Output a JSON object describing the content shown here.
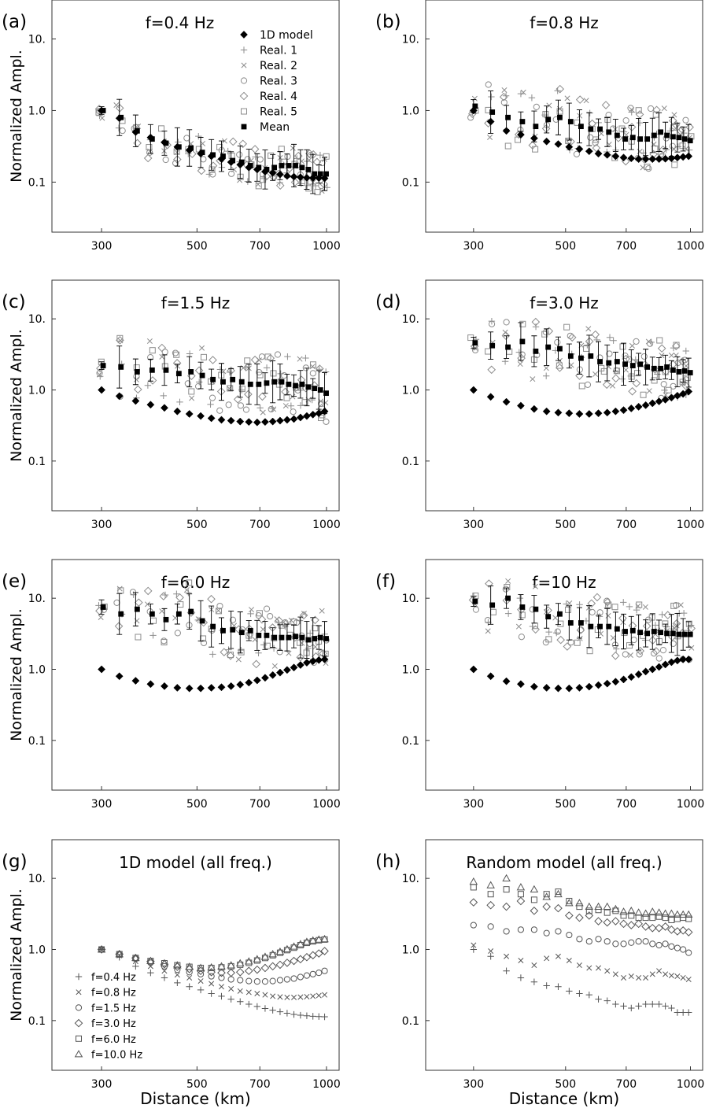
{
  "figure": {
    "ylabel": "Normalized Ampl.",
    "xlabel": "Distance (km)",
    "x_tick_labels": [
      "300",
      "500",
      "700",
      "1000"
    ],
    "y_tick_labels": [
      "10.",
      "1.0",
      "0.1"
    ]
  },
  "legend_main": [
    {
      "marker": "diamond_filled",
      "label": "1D model"
    },
    {
      "marker": "plus",
      "label": "Real. 1"
    },
    {
      "marker": "cross",
      "label": "Real. 2"
    },
    {
      "marker": "circle",
      "label": "Real. 3"
    },
    {
      "marker": "diamond_open",
      "label": "Real. 4"
    },
    {
      "marker": "square_open",
      "label": "Real. 5"
    },
    {
      "marker": "square_filled",
      "label": "Mean"
    }
  ],
  "legend_freq": [
    {
      "marker": "plus",
      "label": "f=0.4 Hz"
    },
    {
      "marker": "cross",
      "label": "f=0.8 Hz"
    },
    {
      "marker": "circle",
      "label": "f=1.5 Hz"
    },
    {
      "marker": "diamond_open",
      "label": "f=3.0 Hz"
    },
    {
      "marker": "square_open",
      "label": "f=6.0 Hz"
    },
    {
      "marker": "triangle",
      "label": "f=10.0 Hz"
    }
  ],
  "colors": {
    "black": "#000000",
    "gray": "#8c8c8c",
    "frame": "#333333"
  },
  "chart_data": [
    {
      "panel": "(a)",
      "title": "f=0.4 Hz",
      "type": "scatter",
      "xscale": "log",
      "yscale": "log",
      "xlim": [
        230,
        1070
      ],
      "ylim": [
        0.02,
        35
      ],
      "distances": [
        300,
        330,
        360,
        390,
        420,
        450,
        480,
        510,
        540,
        570,
        600,
        630,
        660,
        690,
        720,
        750,
        780,
        810,
        840,
        870,
        900,
        930,
        960,
        990
      ],
      "model_1d": [
        1.0,
        0.78,
        0.5,
        0.42,
        0.36,
        0.31,
        0.28,
        0.25,
        0.23,
        0.21,
        0.19,
        0.175,
        0.16,
        0.15,
        0.14,
        0.135,
        0.128,
        0.122,
        0.119,
        0.117,
        0.115,
        0.114,
        0.114,
        0.113
      ],
      "mean": [
        1.0,
        0.8,
        0.52,
        0.4,
        0.35,
        0.31,
        0.3,
        0.26,
        0.24,
        0.23,
        0.2,
        0.19,
        0.17,
        0.16,
        0.15,
        0.16,
        0.17,
        0.17,
        0.17,
        0.16,
        0.15,
        0.13,
        0.13,
        0.13
      ],
      "legend": "main"
    },
    {
      "panel": "(b)",
      "title": "f=0.8 Hz",
      "type": "scatter",
      "xscale": "log",
      "yscale": "log",
      "xlim": [
        230,
        1070
      ],
      "ylim": [
        0.02,
        35
      ],
      "distances": [
        300,
        330,
        360,
        390,
        420,
        450,
        480,
        510,
        540,
        570,
        600,
        630,
        660,
        690,
        720,
        750,
        780,
        810,
        840,
        870,
        900,
        930,
        960,
        990
      ],
      "model_1d": [
        1.0,
        0.7,
        0.52,
        0.46,
        0.41,
        0.37,
        0.34,
        0.31,
        0.29,
        0.27,
        0.25,
        0.24,
        0.23,
        0.22,
        0.215,
        0.21,
        0.21,
        0.21,
        0.21,
        0.212,
        0.215,
        0.22,
        0.225,
        0.23
      ],
      "mean": [
        1.15,
        0.95,
        0.8,
        0.7,
        0.6,
        0.75,
        0.8,
        0.7,
        0.6,
        0.55,
        0.55,
        0.5,
        0.45,
        0.4,
        0.42,
        0.4,
        0.4,
        0.45,
        0.5,
        0.45,
        0.43,
        0.42,
        0.4,
        0.38
      ]
    },
    {
      "panel": "(c)",
      "title": "f=1.5 Hz",
      "type": "scatter",
      "xscale": "log",
      "yscale": "log",
      "xlim": [
        230,
        1070
      ],
      "ylim": [
        0.02,
        35
      ],
      "distances": [
        300,
        330,
        360,
        390,
        420,
        450,
        480,
        510,
        540,
        570,
        600,
        630,
        660,
        690,
        720,
        750,
        780,
        810,
        840,
        870,
        900,
        930,
        960,
        990
      ],
      "model_1d": [
        1.0,
        0.82,
        0.7,
        0.62,
        0.56,
        0.5,
        0.46,
        0.43,
        0.4,
        0.38,
        0.37,
        0.36,
        0.355,
        0.35,
        0.355,
        0.36,
        0.37,
        0.38,
        0.39,
        0.41,
        0.43,
        0.45,
        0.47,
        0.5
      ],
      "mean": [
        2.2,
        2.1,
        1.8,
        1.9,
        1.9,
        1.7,
        1.8,
        1.6,
        1.4,
        1.3,
        1.4,
        1.3,
        1.2,
        1.2,
        1.25,
        1.3,
        1.3,
        1.2,
        1.15,
        1.2,
        1.1,
        1.05,
        1.0,
        0.9
      ]
    },
    {
      "panel": "(d)",
      "title": "f=3.0 Hz",
      "type": "scatter",
      "xscale": "log",
      "yscale": "log",
      "xlim": [
        230,
        1070
      ],
      "ylim": [
        0.02,
        35
      ],
      "distances": [
        300,
        330,
        360,
        390,
        420,
        450,
        480,
        510,
        540,
        570,
        600,
        630,
        660,
        690,
        720,
        750,
        780,
        810,
        840,
        870,
        900,
        930,
        960,
        990
      ],
      "model_1d": [
        1.0,
        0.8,
        0.68,
        0.6,
        0.54,
        0.5,
        0.48,
        0.47,
        0.46,
        0.46,
        0.47,
        0.48,
        0.5,
        0.52,
        0.55,
        0.58,
        0.61,
        0.65,
        0.69,
        0.73,
        0.78,
        0.83,
        0.88,
        0.95
      ],
      "mean": [
        4.6,
        4.2,
        4.0,
        4.8,
        3.5,
        4.0,
        3.8,
        3.0,
        2.8,
        3.0,
        2.5,
        2.4,
        2.5,
        2.3,
        2.2,
        2.3,
        2.1,
        2.0,
        2.0,
        2.1,
        1.9,
        1.8,
        1.85,
        1.75
      ]
    },
    {
      "panel": "(e)",
      "title": "f=6.0 Hz",
      "type": "scatter",
      "xscale": "log",
      "yscale": "log",
      "xlim": [
        230,
        1070
      ],
      "ylim": [
        0.02,
        35
      ],
      "distances": [
        300,
        330,
        360,
        390,
        420,
        450,
        480,
        510,
        540,
        570,
        600,
        630,
        660,
        690,
        720,
        750,
        780,
        810,
        840,
        870,
        900,
        930,
        960,
        990
      ],
      "model_1d": [
        1.0,
        0.8,
        0.69,
        0.62,
        0.58,
        0.55,
        0.54,
        0.54,
        0.55,
        0.56,
        0.58,
        0.61,
        0.65,
        0.7,
        0.76,
        0.83,
        0.9,
        0.98,
        1.06,
        1.15,
        1.24,
        1.3,
        1.35,
        1.38
      ],
      "mean": [
        7.5,
        6.0,
        7.0,
        6.0,
        5.0,
        6.0,
        6.5,
        4.8,
        4.0,
        3.5,
        3.6,
        3.3,
        3.5,
        3.0,
        3.0,
        2.8,
        2.8,
        2.8,
        2.9,
        2.8,
        2.6,
        2.7,
        2.8,
        2.7
      ]
    },
    {
      "panel": "(f)",
      "title": "f=10 Hz",
      "type": "scatter",
      "xscale": "log",
      "yscale": "log",
      "xlim": [
        230,
        1070
      ],
      "ylim": [
        0.02,
        35
      ],
      "distances": [
        300,
        330,
        360,
        390,
        420,
        450,
        480,
        510,
        540,
        570,
        600,
        630,
        660,
        690,
        720,
        750,
        780,
        810,
        840,
        870,
        900,
        930,
        960,
        990
      ],
      "model_1d": [
        1.0,
        0.8,
        0.68,
        0.62,
        0.57,
        0.55,
        0.54,
        0.54,
        0.55,
        0.57,
        0.6,
        0.63,
        0.67,
        0.72,
        0.78,
        0.85,
        0.93,
        1.0,
        1.08,
        1.17,
        1.26,
        1.33,
        1.38,
        1.38
      ],
      "mean": [
        9.0,
        8.0,
        10.0,
        7.5,
        7.0,
        5.5,
        6.0,
        4.5,
        4.5,
        4.0,
        4.0,
        4.0,
        3.7,
        3.4,
        3.5,
        3.3,
        3.2,
        3.4,
        3.3,
        3.2,
        3.2,
        3.1,
        3.1,
        3.1
      ]
    },
    {
      "panel": "(g)",
      "title": "1D model (all freq.)",
      "type": "scatter",
      "xscale": "log",
      "yscale": "log",
      "xlim": [
        230,
        1070
      ],
      "ylim": [
        0.02,
        35
      ],
      "distances": [
        300,
        330,
        360,
        390,
        420,
        450,
        480,
        510,
        540,
        570,
        600,
        630,
        660,
        690,
        720,
        750,
        780,
        810,
        840,
        870,
        900,
        930,
        960,
        990
      ],
      "legend": "freq",
      "series": [
        {
          "name": "f=0.4 Hz",
          "marker": "plus",
          "values": [
            1.0,
            0.78,
            0.58,
            0.47,
            0.4,
            0.34,
            0.3,
            0.27,
            0.24,
            0.22,
            0.2,
            0.185,
            0.17,
            0.158,
            0.148,
            0.14,
            0.133,
            0.127,
            0.122,
            0.119,
            0.117,
            0.115,
            0.114,
            0.113
          ]
        },
        {
          "name": "f=0.8 Hz",
          "marker": "cross",
          "values": [
            1.0,
            0.82,
            0.68,
            0.58,
            0.5,
            0.44,
            0.4,
            0.36,
            0.33,
            0.3,
            0.28,
            0.26,
            0.25,
            0.24,
            0.23,
            0.22,
            0.215,
            0.212,
            0.212,
            0.214,
            0.217,
            0.22,
            0.225,
            0.23
          ]
        },
        {
          "name": "f=1.5 Hz",
          "marker": "circle",
          "values": [
            1.0,
            0.85,
            0.74,
            0.65,
            0.58,
            0.52,
            0.48,
            0.45,
            0.42,
            0.4,
            0.38,
            0.37,
            0.36,
            0.355,
            0.355,
            0.36,
            0.37,
            0.38,
            0.39,
            0.41,
            0.43,
            0.45,
            0.47,
            0.5
          ]
        },
        {
          "name": "f=3.0 Hz",
          "marker": "diamond_open",
          "values": [
            1.0,
            0.86,
            0.76,
            0.68,
            0.62,
            0.57,
            0.53,
            0.5,
            0.48,
            0.47,
            0.47,
            0.48,
            0.5,
            0.52,
            0.55,
            0.58,
            0.61,
            0.65,
            0.69,
            0.73,
            0.78,
            0.83,
            0.88,
            0.95
          ]
        },
        {
          "name": "f=6.0 Hz",
          "marker": "square_open",
          "values": [
            1.0,
            0.86,
            0.76,
            0.69,
            0.64,
            0.6,
            0.57,
            0.55,
            0.55,
            0.56,
            0.58,
            0.61,
            0.65,
            0.7,
            0.76,
            0.83,
            0.9,
            0.98,
            1.06,
            1.15,
            1.24,
            1.3,
            1.35,
            1.38
          ]
        },
        {
          "name": "f=10.0 Hz",
          "marker": "triangle",
          "values": [
            1.0,
            0.86,
            0.76,
            0.69,
            0.64,
            0.6,
            0.57,
            0.55,
            0.56,
            0.58,
            0.6,
            0.64,
            0.68,
            0.73,
            0.79,
            0.86,
            0.93,
            1.01,
            1.1,
            1.19,
            1.28,
            1.34,
            1.38,
            1.4
          ]
        }
      ]
    },
    {
      "panel": "(h)",
      "title": "Random model (all freq.)",
      "type": "scatter",
      "xscale": "log",
      "yscale": "log",
      "xlim": [
        230,
        1070
      ],
      "ylim": [
        0.02,
        35
      ],
      "distances": [
        300,
        330,
        360,
        390,
        420,
        450,
        480,
        510,
        540,
        570,
        600,
        630,
        660,
        690,
        720,
        750,
        780,
        810,
        840,
        870,
        900,
        930,
        960,
        990
      ],
      "series": [
        {
          "name": "f=0.4 Hz",
          "marker": "plus",
          "values": [
            1.0,
            0.8,
            0.5,
            0.4,
            0.35,
            0.31,
            0.3,
            0.26,
            0.24,
            0.23,
            0.2,
            0.19,
            0.17,
            0.16,
            0.15,
            0.16,
            0.17,
            0.17,
            0.17,
            0.16,
            0.15,
            0.13,
            0.13,
            0.13
          ]
        },
        {
          "name": "f=0.8 Hz",
          "marker": "cross",
          "values": [
            1.15,
            0.95,
            0.8,
            0.7,
            0.6,
            0.75,
            0.8,
            0.7,
            0.6,
            0.55,
            0.55,
            0.5,
            0.45,
            0.4,
            0.42,
            0.4,
            0.4,
            0.45,
            0.5,
            0.45,
            0.43,
            0.42,
            0.4,
            0.38
          ]
        },
        {
          "name": "f=1.5 Hz",
          "marker": "circle",
          "values": [
            2.2,
            2.1,
            1.8,
            1.9,
            1.9,
            1.7,
            1.8,
            1.6,
            1.4,
            1.3,
            1.4,
            1.3,
            1.2,
            1.2,
            1.25,
            1.3,
            1.3,
            1.2,
            1.15,
            1.2,
            1.1,
            1.05,
            1.0,
            0.9
          ]
        },
        {
          "name": "f=3.0 Hz",
          "marker": "diamond_open",
          "values": [
            4.6,
            4.2,
            4.0,
            4.8,
            3.5,
            4.0,
            3.8,
            3.0,
            2.8,
            3.0,
            2.5,
            2.4,
            2.5,
            2.3,
            2.2,
            2.3,
            2.1,
            2.0,
            2.0,
            2.1,
            1.9,
            1.8,
            1.85,
            1.75
          ]
        },
        {
          "name": "f=6.0 Hz",
          "marker": "square_open",
          "values": [
            7.5,
            6.0,
            7.0,
            6.0,
            5.0,
            6.0,
            6.5,
            4.8,
            4.0,
            3.5,
            3.6,
            3.3,
            3.5,
            3.0,
            3.0,
            2.8,
            2.8,
            2.8,
            2.9,
            2.8,
            2.6,
            2.7,
            2.8,
            2.7
          ]
        },
        {
          "name": "f=10.0 Hz",
          "marker": "triangle",
          "values": [
            9.0,
            8.0,
            10.0,
            7.5,
            7.0,
            5.5,
            6.0,
            4.5,
            4.5,
            4.0,
            4.0,
            4.0,
            3.7,
            3.4,
            3.5,
            3.3,
            3.2,
            3.4,
            3.3,
            3.2,
            3.2,
            3.1,
            3.1,
            3.1
          ]
        }
      ]
    }
  ]
}
